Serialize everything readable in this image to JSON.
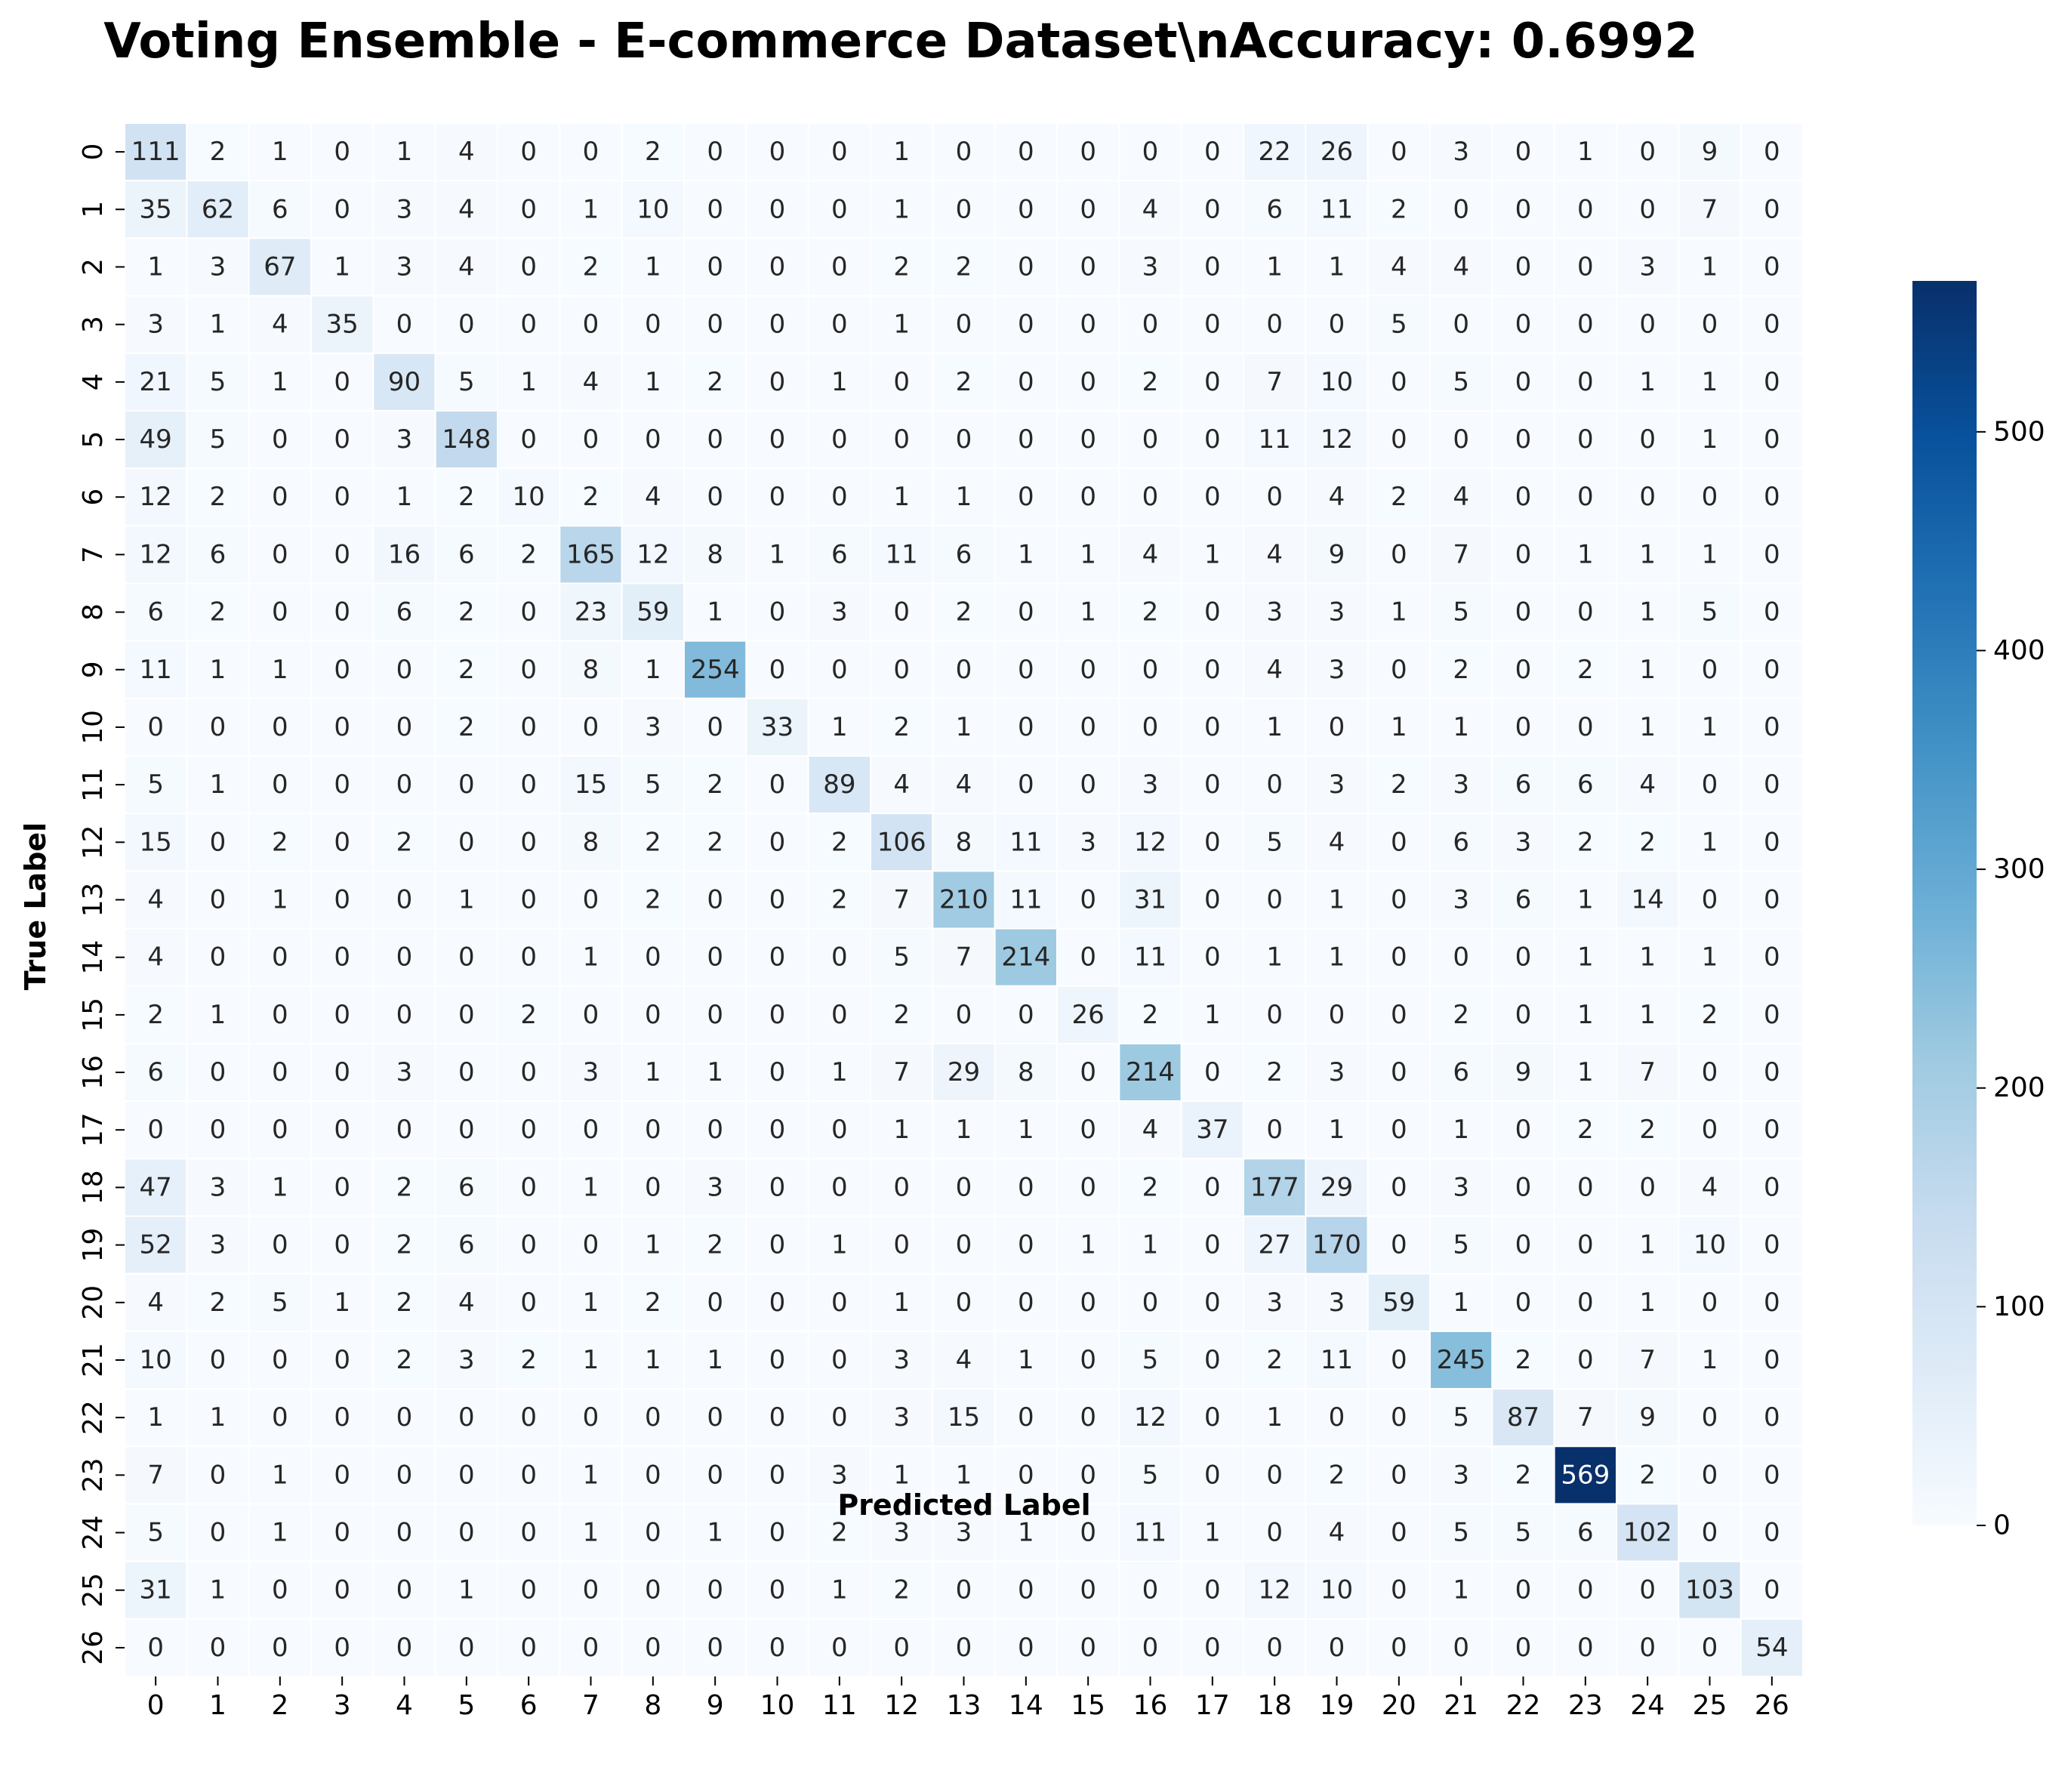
{
  "chart_data": {
    "type": "heatmap",
    "title": "Voting Ensemble - E-commerce Dataset\\nAccuracy: 0.6992",
    "xlabel": "Predicted Label",
    "ylabel": "True Label",
    "x_tick_labels": [
      "0",
      "1",
      "2",
      "3",
      "4",
      "5",
      "6",
      "7",
      "8",
      "9",
      "10",
      "11",
      "12",
      "13",
      "14",
      "15",
      "16",
      "17",
      "18",
      "19",
      "20",
      "21",
      "22",
      "23",
      "24",
      "25",
      "26"
    ],
    "y_tick_labels": [
      "0",
      "1",
      "2",
      "3",
      "4",
      "5",
      "6",
      "7",
      "8",
      "9",
      "10",
      "11",
      "12",
      "13",
      "14",
      "15",
      "16",
      "17",
      "18",
      "19",
      "20",
      "21",
      "22",
      "23",
      "24",
      "25",
      "26"
    ],
    "colormap": "Blues",
    "color_low": "#f7fbff",
    "color_high": "#08306b",
    "colorbar": {
      "min": 0,
      "max": 569,
      "ticks": [
        0,
        100,
        200,
        300,
        400,
        500
      ]
    },
    "values": [
      [
        111,
        2,
        1,
        0,
        1,
        4,
        0,
        0,
        2,
        0,
        0,
        0,
        1,
        0,
        0,
        0,
        0,
        0,
        22,
        26,
        0,
        3,
        0,
        1,
        0,
        9,
        0
      ],
      [
        35,
        62,
        6,
        0,
        3,
        4,
        0,
        1,
        10,
        0,
        0,
        0,
        1,
        0,
        0,
        0,
        4,
        0,
        6,
        11,
        2,
        0,
        0,
        0,
        0,
        7,
        0
      ],
      [
        1,
        3,
        67,
        1,
        3,
        4,
        0,
        2,
        1,
        0,
        0,
        0,
        2,
        2,
        0,
        0,
        3,
        0,
        1,
        1,
        4,
        4,
        0,
        0,
        3,
        1,
        0
      ],
      [
        3,
        1,
        4,
        35,
        0,
        0,
        0,
        0,
        0,
        0,
        0,
        0,
        1,
        0,
        0,
        0,
        0,
        0,
        0,
        0,
        5,
        0,
        0,
        0,
        0,
        0,
        0
      ],
      [
        21,
        5,
        1,
        0,
        90,
        5,
        1,
        4,
        1,
        2,
        0,
        1,
        0,
        2,
        0,
        0,
        2,
        0,
        7,
        10,
        0,
        5,
        0,
        0,
        1,
        1,
        0
      ],
      [
        49,
        5,
        0,
        0,
        3,
        148,
        0,
        0,
        0,
        0,
        0,
        0,
        0,
        0,
        0,
        0,
        0,
        0,
        11,
        12,
        0,
        0,
        0,
        0,
        0,
        1,
        0
      ],
      [
        12,
        2,
        0,
        0,
        1,
        2,
        10,
        2,
        4,
        0,
        0,
        0,
        1,
        1,
        0,
        0,
        0,
        0,
        0,
        4,
        2,
        4,
        0,
        0,
        0,
        0,
        0
      ],
      [
        12,
        6,
        0,
        0,
        16,
        6,
        2,
        165,
        12,
        8,
        1,
        6,
        11,
        6,
        1,
        1,
        4,
        1,
        4,
        9,
        0,
        7,
        0,
        1,
        1,
        1,
        0
      ],
      [
        6,
        2,
        0,
        0,
        6,
        2,
        0,
        23,
        59,
        1,
        0,
        3,
        0,
        2,
        0,
        1,
        2,
        0,
        3,
        3,
        1,
        5,
        0,
        0,
        1,
        5,
        0
      ],
      [
        11,
        1,
        1,
        0,
        0,
        2,
        0,
        8,
        1,
        254,
        0,
        0,
        0,
        0,
        0,
        0,
        0,
        0,
        4,
        3,
        0,
        2,
        0,
        2,
        1,
        0,
        0
      ],
      [
        0,
        0,
        0,
        0,
        0,
        2,
        0,
        0,
        3,
        0,
        33,
        1,
        2,
        1,
        0,
        0,
        0,
        0,
        1,
        0,
        1,
        1,
        0,
        0,
        1,
        1,
        0
      ],
      [
        5,
        1,
        0,
        0,
        0,
        0,
        0,
        15,
        5,
        2,
        0,
        89,
        4,
        4,
        0,
        0,
        3,
        0,
        0,
        3,
        2,
        3,
        6,
        6,
        4,
        0,
        0
      ],
      [
        15,
        0,
        2,
        0,
        2,
        0,
        0,
        8,
        2,
        2,
        0,
        2,
        106,
        8,
        11,
        3,
        12,
        0,
        5,
        4,
        0,
        6,
        3,
        2,
        2,
        1,
        0
      ],
      [
        4,
        0,
        1,
        0,
        0,
        1,
        0,
        0,
        2,
        0,
        0,
        2,
        7,
        210,
        11,
        0,
        31,
        0,
        0,
        1,
        0,
        3,
        6,
        1,
        14,
        0,
        0
      ],
      [
        4,
        0,
        0,
        0,
        0,
        0,
        0,
        1,
        0,
        0,
        0,
        0,
        5,
        7,
        214,
        0,
        11,
        0,
        1,
        1,
        0,
        0,
        0,
        1,
        1,
        1,
        0
      ],
      [
        2,
        1,
        0,
        0,
        0,
        0,
        2,
        0,
        0,
        0,
        0,
        0,
        2,
        0,
        0,
        26,
        2,
        1,
        0,
        0,
        0,
        2,
        0,
        1,
        1,
        2,
        0
      ],
      [
        6,
        0,
        0,
        0,
        3,
        0,
        0,
        3,
        1,
        1,
        0,
        1,
        7,
        29,
        8,
        0,
        214,
        0,
        2,
        3,
        0,
        6,
        9,
        1,
        7,
        0,
        0
      ],
      [
        0,
        0,
        0,
        0,
        0,
        0,
        0,
        0,
        0,
        0,
        0,
        0,
        1,
        1,
        1,
        0,
        4,
        37,
        0,
        1,
        0,
        1,
        0,
        2,
        2,
        0,
        0
      ],
      [
        47,
        3,
        1,
        0,
        2,
        6,
        0,
        1,
        0,
        3,
        0,
        0,
        0,
        0,
        0,
        0,
        2,
        0,
        177,
        29,
        0,
        3,
        0,
        0,
        0,
        4,
        0
      ],
      [
        52,
        3,
        0,
        0,
        2,
        6,
        0,
        0,
        1,
        2,
        0,
        1,
        0,
        0,
        0,
        1,
        1,
        0,
        27,
        170,
        0,
        5,
        0,
        0,
        1,
        10,
        0
      ],
      [
        4,
        2,
        5,
        1,
        2,
        4,
        0,
        1,
        2,
        0,
        0,
        0,
        1,
        0,
        0,
        0,
        0,
        0,
        3,
        3,
        59,
        1,
        0,
        0,
        1,
        0,
        0
      ],
      [
        10,
        0,
        0,
        0,
        2,
        3,
        2,
        1,
        1,
        1,
        0,
        0,
        3,
        4,
        1,
        0,
        5,
        0,
        2,
        11,
        0,
        245,
        2,
        0,
        7,
        1,
        0
      ],
      [
        1,
        1,
        0,
        0,
        0,
        0,
        0,
        0,
        0,
        0,
        0,
        0,
        3,
        15,
        0,
        0,
        12,
        0,
        1,
        0,
        0,
        5,
        87,
        7,
        9,
        0,
        0
      ],
      [
        7,
        0,
        1,
        0,
        0,
        0,
        0,
        1,
        0,
        0,
        0,
        3,
        1,
        1,
        0,
        0,
        5,
        0,
        0,
        2,
        0,
        3,
        2,
        569,
        2,
        0,
        0
      ],
      [
        5,
        0,
        1,
        0,
        0,
        0,
        0,
        1,
        0,
        1,
        0,
        2,
        3,
        3,
        1,
        0,
        11,
        1,
        0,
        4,
        0,
        5,
        5,
        6,
        102,
        0,
        0
      ],
      [
        31,
        1,
        0,
        0,
        0,
        1,
        0,
        0,
        0,
        0,
        0,
        1,
        2,
        0,
        0,
        0,
        0,
        0,
        12,
        10,
        0,
        1,
        0,
        0,
        0,
        103,
        0
      ],
      [
        0,
        0,
        0,
        0,
        0,
        0,
        0,
        0,
        0,
        0,
        0,
        0,
        0,
        0,
        0,
        0,
        0,
        0,
        0,
        0,
        0,
        0,
        0,
        0,
        0,
        0,
        54
      ]
    ]
  }
}
